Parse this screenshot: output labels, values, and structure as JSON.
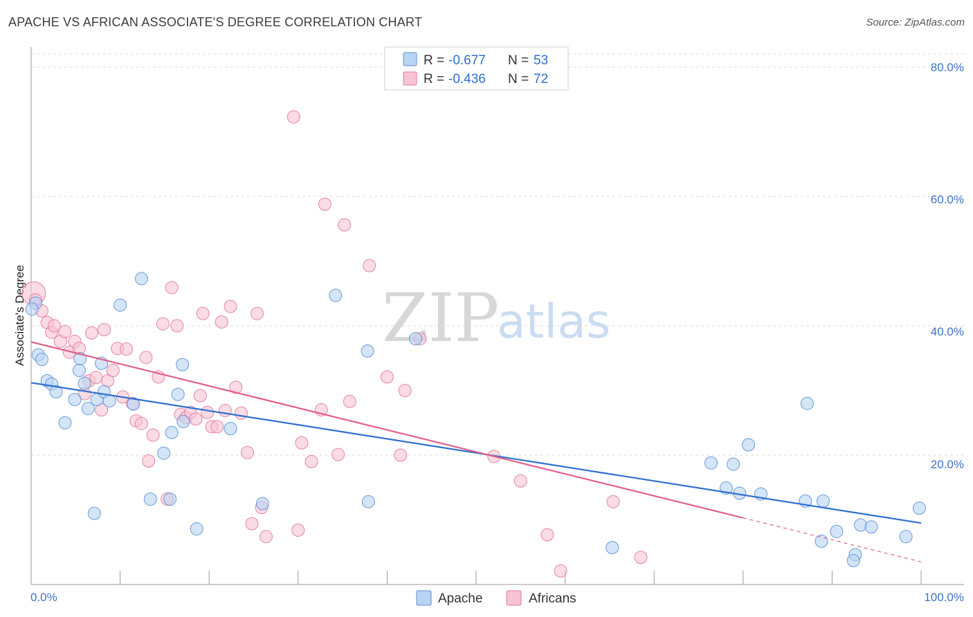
{
  "title": "APACHE VS AFRICAN ASSOCIATE'S DEGREE CORRELATION CHART",
  "source": "Source: ZipAtlas.com",
  "watermark": {
    "zip": "ZIP",
    "atlas": "atlas"
  },
  "colors": {
    "apache_fill": "#b8d3f3",
    "apache_stroke": "#5b8fd6",
    "apache_line": "#2f6fcf",
    "africans_fill": "#f8c3d2",
    "africans_stroke": "#e27a9b",
    "africans_line": "#e0608a",
    "grid": "#dcdcdc",
    "axis_text": "#3b73c4"
  },
  "legend": {
    "rows": [
      {
        "r_label": "R =",
        "r_value": "-0.677",
        "n_label": "N =",
        "n_value": "53"
      },
      {
        "r_label": "R =",
        "r_value": "-0.436",
        "n_label": "N =",
        "n_value": "72"
      }
    ]
  },
  "chart_data": {
    "type": "scatter",
    "title": "APACHE VS AFRICAN ASSOCIATE'S DEGREE CORRELATION CHART",
    "xlabel": "",
    "ylabel": "Associate's Degree",
    "xlim": [
      0,
      100
    ],
    "ylim": [
      0,
      80
    ],
    "x_tick_labels": [
      "0.0%",
      "100.0%"
    ],
    "y_ticks": [
      20,
      40,
      60,
      80
    ],
    "y_tick_labels": [
      "20.0%",
      "40.0%",
      "60.0%",
      "80.0%"
    ],
    "grid": true,
    "legend_position": "top-center",
    "series": [
      {
        "name": "Apache",
        "r": -0.677,
        "n": 53,
        "trend": {
          "x0": 0,
          "y0": 31.2,
          "x1": 100,
          "y1": 9.5
        },
        "points": [
          [
            0.5,
            43.5
          ],
          [
            0.8,
            35.5
          ],
          [
            1.2,
            34.8
          ],
          [
            1.8,
            31.5
          ],
          [
            2.3,
            31.0
          ],
          [
            2.8,
            29.8
          ],
          [
            3.8,
            25.0
          ],
          [
            4.9,
            28.6
          ],
          [
            5.5,
            34.9
          ],
          [
            5.4,
            33.1
          ],
          [
            6.0,
            31.1
          ],
          [
            6.4,
            27.2
          ],
          [
            7.1,
            11.0
          ],
          [
            7.4,
            28.6
          ],
          [
            7.9,
            34.2
          ],
          [
            8.2,
            29.8
          ],
          [
            8.8,
            28.4
          ],
          [
            10.0,
            43.2
          ],
          [
            11.5,
            27.9
          ],
          [
            12.4,
            47.3
          ],
          [
            13.4,
            13.2
          ],
          [
            14.9,
            20.3
          ],
          [
            15.6,
            13.2
          ],
          [
            15.8,
            23.5
          ],
          [
            16.5,
            29.4
          ],
          [
            17.0,
            34.0
          ],
          [
            17.1,
            25.2
          ],
          [
            18.6,
            8.6
          ],
          [
            22.4,
            24.1
          ],
          [
            26.0,
            12.5
          ],
          [
            34.2,
            44.7
          ],
          [
            37.8,
            36.1
          ],
          [
            37.9,
            12.8
          ],
          [
            43.2,
            38.0
          ],
          [
            65.3,
            5.7
          ],
          [
            76.4,
            18.8
          ],
          [
            78.1,
            14.9
          ],
          [
            78.9,
            18.6
          ],
          [
            79.6,
            14.1
          ],
          [
            80.6,
            21.6
          ],
          [
            82.0,
            14.0
          ],
          [
            87.0,
            12.9
          ],
          [
            87.2,
            28.0
          ],
          [
            88.8,
            6.7
          ],
          [
            89.0,
            12.9
          ],
          [
            90.5,
            8.2
          ],
          [
            92.6,
            4.6
          ],
          [
            92.4,
            3.7
          ],
          [
            93.2,
            9.2
          ],
          [
            94.4,
            8.9
          ],
          [
            98.3,
            7.4
          ],
          [
            99.8,
            11.8
          ],
          [
            0.1,
            42.6
          ]
        ]
      },
      {
        "name": "Africans",
        "r": -0.436,
        "n": 72,
        "trend": {
          "x0": 0,
          "y0": 37.5,
          "x1": 80,
          "y1": 10.3,
          "dash_to_x": 100,
          "dash_to_y": 3.5
        },
        "points": [
          [
            0.3,
            45.0
          ],
          [
            0.5,
            44.0
          ],
          [
            1.2,
            42.3
          ],
          [
            1.8,
            40.5
          ],
          [
            2.3,
            39.0
          ],
          [
            2.6,
            40.0
          ],
          [
            3.3,
            37.6
          ],
          [
            3.8,
            39.1
          ],
          [
            4.3,
            35.9
          ],
          [
            4.9,
            37.6
          ],
          [
            5.4,
            36.5
          ],
          [
            6.0,
            29.5
          ],
          [
            6.5,
            31.5
          ],
          [
            6.8,
            38.9
          ],
          [
            7.3,
            32.0
          ],
          [
            7.9,
            27.0
          ],
          [
            8.2,
            39.4
          ],
          [
            8.6,
            31.5
          ],
          [
            9.2,
            33.1
          ],
          [
            9.7,
            36.5
          ],
          [
            10.3,
            29.0
          ],
          [
            10.7,
            36.4
          ],
          [
            11.4,
            28.0
          ],
          [
            11.8,
            25.3
          ],
          [
            12.4,
            24.9
          ],
          [
            12.9,
            35.1
          ],
          [
            13.2,
            19.1
          ],
          [
            13.7,
            23.1
          ],
          [
            14.3,
            32.1
          ],
          [
            14.8,
            40.3
          ],
          [
            15.3,
            13.2
          ],
          [
            15.8,
            45.9
          ],
          [
            16.4,
            40.0
          ],
          [
            16.8,
            26.3
          ],
          [
            17.4,
            25.8
          ],
          [
            17.9,
            26.6
          ],
          [
            18.5,
            25.6
          ],
          [
            19.0,
            29.2
          ],
          [
            19.3,
            41.9
          ],
          [
            19.8,
            26.6
          ],
          [
            20.3,
            24.4
          ],
          [
            20.9,
            24.4
          ],
          [
            21.4,
            40.6
          ],
          [
            21.8,
            26.9
          ],
          [
            22.4,
            43.0
          ],
          [
            23.0,
            30.5
          ],
          [
            23.6,
            26.5
          ],
          [
            24.3,
            20.4
          ],
          [
            24.8,
            9.4
          ],
          [
            25.4,
            41.9
          ],
          [
            25.9,
            11.9
          ],
          [
            26.4,
            7.4
          ],
          [
            29.5,
            72.3
          ],
          [
            30.0,
            8.4
          ],
          [
            30.4,
            21.9
          ],
          [
            31.5,
            19.0
          ],
          [
            32.6,
            27.0
          ],
          [
            33.0,
            58.8
          ],
          [
            34.5,
            20.1
          ],
          [
            35.2,
            55.6
          ],
          [
            35.8,
            28.3
          ],
          [
            38.0,
            49.3
          ],
          [
            40.0,
            32.1
          ],
          [
            41.5,
            20.0
          ],
          [
            42.0,
            30.0
          ],
          [
            43.7,
            38.0
          ],
          [
            52.0,
            19.8
          ],
          [
            55.0,
            16.0
          ],
          [
            58.0,
            7.7
          ],
          [
            59.5,
            2.1
          ],
          [
            65.4,
            12.8
          ],
          [
            68.5,
            4.2
          ]
        ]
      }
    ]
  }
}
